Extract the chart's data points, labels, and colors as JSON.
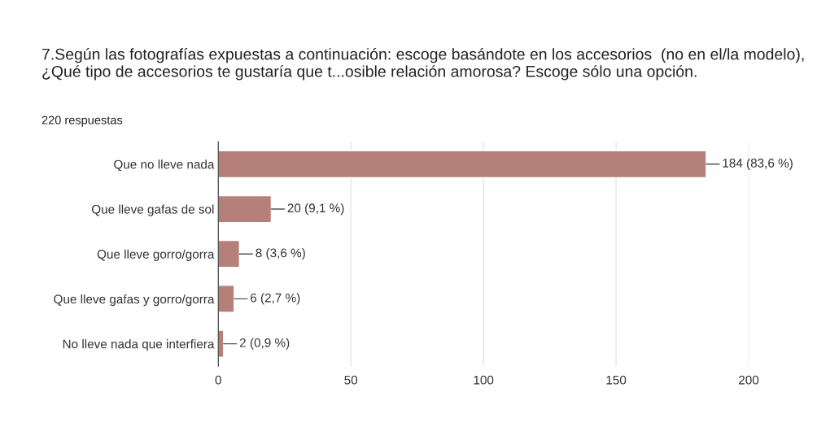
{
  "chart_data": {
    "type": "bar",
    "orientation": "horizontal",
    "title": "7.Según las fotografías expuestas a continuación: escoge basándote en los accesorios  (no en el/la modelo), ¿Qué tipo de accesorios te gustaría que t...osible relación amorosa? Escoge sólo una opción.",
    "subtitle": "220 respuestas",
    "categories": [
      "Que no lleve nada",
      "Que lleve gafas de sol",
      "Que lleve gorro/gorra",
      "Que lleve gafas y gorro/gorra",
      "No lleve nada que interfiera"
    ],
    "values": [
      184,
      20,
      8,
      6,
      2
    ],
    "value_labels": [
      "184 (83,6 %)",
      "20 (9,1 %)",
      "8 (3,6 %)",
      "6 (2,7 %)",
      "2 (0,9 %)"
    ],
    "color": "#b5807a",
    "xlim": [
      0,
      200
    ],
    "xticks": [
      0,
      50,
      100,
      150,
      200
    ],
    "grid": "x",
    "legend": false
  }
}
